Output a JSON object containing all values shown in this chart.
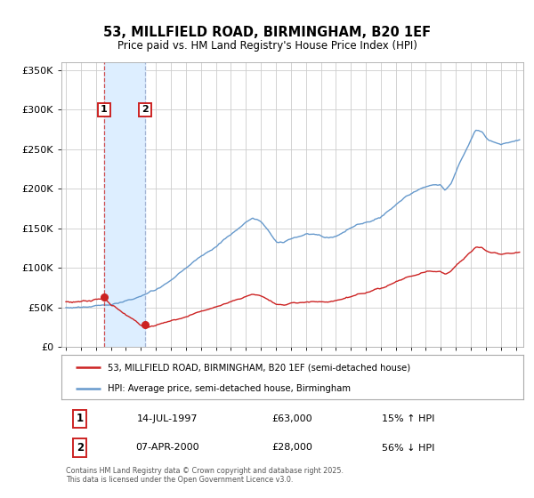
{
  "title": "53, MILLFIELD ROAD, BIRMINGHAM, B20 1EF",
  "subtitle": "Price paid vs. HM Land Registry's House Price Index (HPI)",
  "background_color": "#ffffff",
  "plot_bg_color": "#ffffff",
  "hpi_color": "#6699cc",
  "price_color": "#cc2222",
  "span_color": "#ddeeff",
  "vline1_color": "#cc3333",
  "vline2_color": "#99aacc",
  "legend_line1": "53, MILLFIELD ROAD, BIRMINGHAM, B20 1EF (semi-detached house)",
  "legend_line2": "HPI: Average price, semi-detached house, Birmingham",
  "table_row1": [
    "1",
    "14-JUL-1997",
    "£63,000",
    "15% ↑ HPI"
  ],
  "table_row2": [
    "2",
    "07-APR-2000",
    "£28,000",
    "56% ↓ HPI"
  ],
  "footer": "Contains HM Land Registry data © Crown copyright and database right 2025.\nThis data is licensed under the Open Government Licence v3.0.",
  "ylim": [
    0,
    360000
  ],
  "yticks": [
    0,
    50000,
    100000,
    150000,
    200000,
    250000,
    300000,
    350000
  ],
  "ytick_labels": [
    "£0",
    "£50K",
    "£100K",
    "£150K",
    "£200K",
    "£250K",
    "£300K",
    "£350K"
  ],
  "xlim_start": 1994.7,
  "xlim_end": 2025.5,
  "xticks": [
    1995,
    1996,
    1997,
    1998,
    1999,
    2000,
    2001,
    2002,
    2003,
    2004,
    2005,
    2006,
    2007,
    2008,
    2009,
    2010,
    2011,
    2012,
    2013,
    2014,
    2015,
    2016,
    2017,
    2018,
    2019,
    2020,
    2021,
    2022,
    2023,
    2024,
    2025
  ],
  "sale1_x": 1997.54,
  "sale1_y": 63000,
  "sale2_x": 2000.27,
  "sale2_y": 28000
}
